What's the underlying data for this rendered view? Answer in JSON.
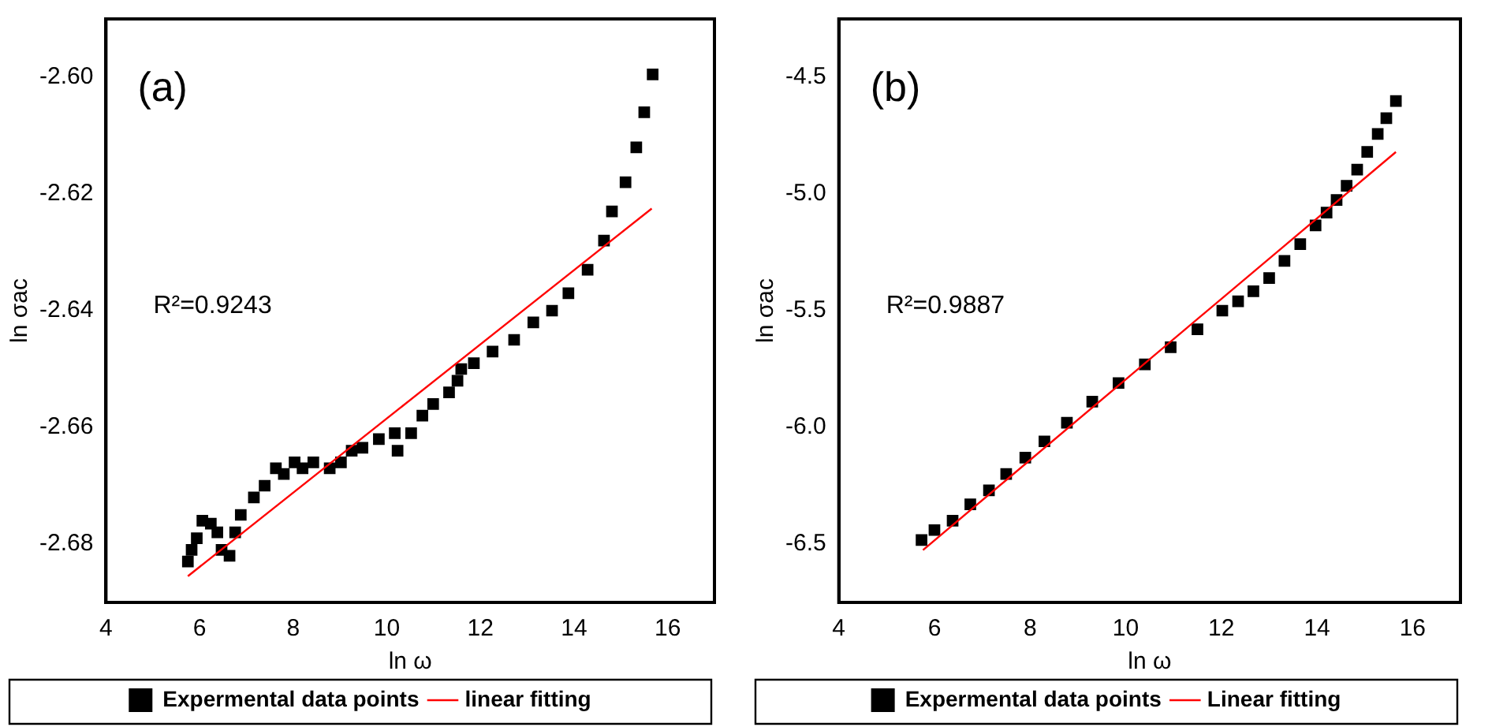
{
  "chart_data": [
    {
      "type": "scatter",
      "xlabel": "ln ω",
      "ylabel": "ln σac",
      "annotations": [
        "(a)",
        "R²=0.9243"
      ],
      "xlim": [
        4,
        17
      ],
      "xticks": [
        4,
        6,
        8,
        10,
        12,
        14,
        16
      ],
      "ylim": [
        -2.69,
        -2.59
      ],
      "yticks": [
        {
          "value": -2.68,
          "label": "-2.68"
        },
        {
          "value": -2.66,
          "label": "-2.66"
        },
        {
          "value": -2.64,
          "label": "-2.64"
        },
        {
          "value": -2.62,
          "label": "-2.62"
        },
        {
          "value": -2.6,
          "label": "-2.60"
        }
      ],
      "grid": false,
      "legend": "bottom",
      "series": [
        {
          "name": "Expermental data points",
          "color": "#000000",
          "marker": "square",
          "x": [
            5.75,
            5.83,
            5.94,
            6.06,
            6.24,
            6.38,
            6.47,
            6.64,
            6.76,
            6.88,
            7.16,
            7.39,
            7.63,
            7.8,
            8.03,
            8.2,
            8.43,
            8.78,
            9.02,
            9.25,
            9.48,
            9.83,
            10.17,
            10.23,
            10.52,
            10.76,
            10.99,
            11.33,
            11.51,
            11.59,
            11.86,
            12.26,
            12.72,
            13.13,
            13.53,
            13.88,
            14.29,
            14.64,
            14.81,
            15.1,
            15.33,
            15.5,
            15.68
          ],
          "values": [
            -2.683,
            -2.681,
            -2.679,
            -2.676,
            -2.6765,
            -2.678,
            -2.681,
            -2.682,
            -2.678,
            -2.675,
            -2.672,
            -2.67,
            -2.667,
            -2.668,
            -2.666,
            -2.667,
            -2.666,
            -2.667,
            -2.666,
            -2.664,
            -2.6635,
            -2.662,
            -2.661,
            -2.664,
            -2.661,
            -2.658,
            -2.656,
            -2.654,
            -2.652,
            -2.65,
            -2.649,
            -2.647,
            -2.645,
            -2.642,
            -2.64,
            -2.637,
            -2.633,
            -2.628,
            -2.623,
            -2.618,
            -2.612,
            -2.606,
            -2.5995
          ]
        },
        {
          "name": "linear fitting",
          "type": "line",
          "color": "#ff0000",
          "marker": "none",
          "x": [
            5.75,
            15.66
          ],
          "values": [
            -2.6855,
            -2.6225
          ]
        }
      ]
    },
    {
      "type": "scatter",
      "xlabel": "ln ω",
      "ylabel": "ln σac",
      "annotations": [
        "(b)",
        "R²=0.9887"
      ],
      "xlim": [
        4,
        17
      ],
      "xticks": [
        4,
        6,
        8,
        10,
        12,
        14,
        16
      ],
      "ylim": [
        -6.75,
        -4.25
      ],
      "yticks": [
        -6.5,
        {
          "value": -6.0,
          "label": "-6.0"
        },
        -5.5,
        {
          "value": -5.0,
          "label": "-5.0"
        },
        -4.5
      ],
      "grid": false,
      "legend": "bottom",
      "series": [
        {
          "name": "Expermental data points",
          "color": "#000000",
          "marker": "square",
          "x": [
            5.73,
            6.0,
            6.38,
            6.75,
            7.14,
            7.5,
            7.9,
            8.3,
            8.77,
            9.3,
            9.85,
            10.4,
            10.94,
            11.5,
            12.02,
            12.35,
            12.67,
            13.0,
            13.32,
            13.65,
            13.97,
            14.2,
            14.41,
            14.62,
            14.84,
            15.05,
            15.27,
            15.45,
            15.65
          ],
          "values": [
            -6.483,
            -6.44,
            -6.4,
            -6.33,
            -6.27,
            -6.2,
            -6.13,
            -6.06,
            -5.98,
            -5.89,
            -5.81,
            -5.73,
            -5.657,
            -5.58,
            -5.5,
            -5.46,
            -5.417,
            -5.36,
            -5.287,
            -5.215,
            -5.135,
            -5.08,
            -5.026,
            -4.965,
            -4.896,
            -4.82,
            -4.743,
            -4.675,
            -4.602
          ]
        },
        {
          "name": "Linear fitting",
          "type": "line",
          "color": "#ff0000",
          "marker": "none",
          "x": [
            5.76,
            15.65
          ],
          "values": [
            -6.526,
            -4.82
          ]
        }
      ]
    }
  ]
}
